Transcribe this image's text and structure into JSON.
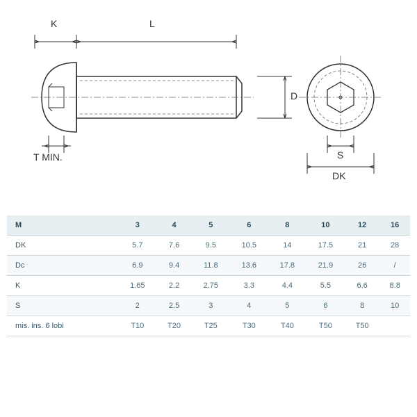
{
  "diagram": {
    "labels": {
      "K": "K",
      "L": "L",
      "D": "D",
      "S": "S",
      "DK": "DK",
      "Tmin": "T MIN."
    },
    "stroke": "#333333",
    "stroke_thin": "#666666",
    "dash": "4,3",
    "centerline_dash": "10,3,2,3",
    "label_fontsize": 14,
    "small_fontsize": 9
  },
  "table": {
    "header_bg": "#e8eff2",
    "alt_bg": "#f4f8fa",
    "border_color": "#d0d8dc",
    "text_color": "#4a6a7a",
    "columns": [
      "M",
      "3",
      "4",
      "5",
      "6",
      "8",
      "10",
      "12",
      "16"
    ],
    "rows": [
      {
        "head": "DK",
        "cells": [
          "5.7",
          "7.6",
          "9.5",
          "10.5",
          "14",
          "17.5",
          "21",
          "28"
        ]
      },
      {
        "head": "Dc",
        "cells": [
          "6.9",
          "9.4",
          "11.8",
          "13.6",
          "17.8",
          "21.9",
          "26",
          "/"
        ]
      },
      {
        "head": "K",
        "cells": [
          "1.65",
          "2.2",
          "2.75",
          "3.3",
          "4.4",
          "5.5",
          "6.6",
          "8.8"
        ]
      },
      {
        "head": "S",
        "cells": [
          "2",
          "2.5",
          "3",
          "4",
          "5",
          "6",
          "8",
          "10"
        ]
      },
      {
        "head": "mis. ins. 6 lobi",
        "cells": [
          "T10",
          "T20",
          "T25",
          "T30",
          "T40",
          "T50",
          "T50",
          ""
        ]
      }
    ]
  }
}
